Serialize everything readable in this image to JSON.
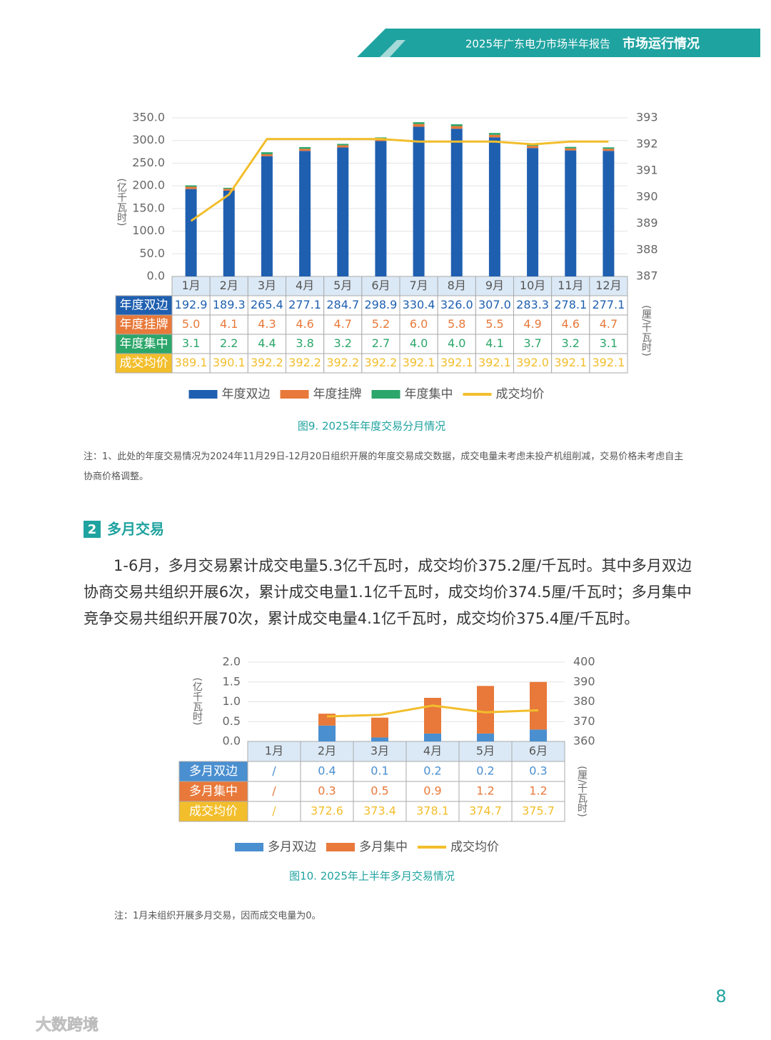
{
  "header": {
    "report": "2025年广东电力市场半年报告",
    "section": "市场运行情况"
  },
  "chart_data": [
    {
      "type": "bar",
      "stacked": true,
      "categories": [
        "1月",
        "2月",
        "3月",
        "4月",
        "5月",
        "6月",
        "7月",
        "8月",
        "9月",
        "10月",
        "11月",
        "12月"
      ],
      "series": [
        {
          "name": "年度双边",
          "color": "#1f5fb0",
          "values": [
            192.9,
            189.3,
            265.4,
            277.1,
            284.7,
            298.9,
            330.4,
            326.0,
            307.0,
            283.3,
            278.1,
            277.1
          ],
          "value_labels": [
            "192.9",
            "189.3",
            "265.4",
            "277.1",
            "284.7",
            "298.9",
            "330.4",
            "326.0",
            "307.0",
            "283.3",
            "278.1",
            "277.1"
          ]
        },
        {
          "name": "年度挂牌",
          "color": "#e8793a",
          "values": [
            5.0,
            4.1,
            4.3,
            4.6,
            4.7,
            5.2,
            6.0,
            5.8,
            5.5,
            4.9,
            4.6,
            4.7
          ],
          "value_labels": [
            "5.0",
            "4.1",
            "4.3",
            "4.6",
            "4.7",
            "5.2",
            "6.0",
            "5.8",
            "5.5",
            "4.9",
            "4.6",
            "4.7"
          ]
        },
        {
          "name": "年度集中",
          "color": "#2ca66a",
          "values": [
            3.1,
            2.2,
            4.4,
            3.8,
            3.2,
            2.7,
            4.0,
            4.0,
            4.1,
            3.7,
            3.2,
            3.1
          ],
          "value_labels": [
            "3.1",
            "2.2",
            "4.4",
            "3.8",
            "3.2",
            "2.7",
            "4.0",
            "4.0",
            "4.1",
            "3.7",
            "3.2",
            "3.1"
          ]
        },
        {
          "name": "成交均价",
          "color": "#f2be2c",
          "axis": "y2",
          "values": [
            389.1,
            390.1,
            392.2,
            392.2,
            392.2,
            392.2,
            392.1,
            392.1,
            392.1,
            392.0,
            392.1,
            392.1
          ],
          "value_labels": [
            "389.1",
            "390.1",
            "392.2",
            "392.2",
            "392.2",
            "392.2",
            "392.1",
            "392.1",
            "392.1",
            "392.0",
            "392.1",
            "392.1"
          ]
        }
      ],
      "y_label": "(亿千瓦时)",
      "y2_label": "(厘/千瓦时)",
      "ylim": [
        0,
        350
      ],
      "yticks": [
        {
          "value": 0,
          "label": "0.0"
        },
        {
          "value": 50,
          "label": "50.0"
        },
        {
          "value": 100,
          "label": "100.0"
        },
        {
          "value": 150,
          "label": "150.0"
        },
        {
          "value": 200,
          "label": "200.0"
        },
        {
          "value": 250,
          "label": "250.0"
        },
        {
          "value": 300,
          "label": "300.0"
        },
        {
          "value": 350,
          "label": "350.0"
        }
      ],
      "y2lim": [
        387,
        393
      ],
      "y2ticks": [
        387,
        388,
        389,
        390,
        391,
        392,
        393
      ],
      "grid": true,
      "caption": "图9. 2025年年度交易分月情况",
      "note": "注：1、此处的年度交易情况为2024年11月29日-12月20日组织开展的年度交易成交数据，成交电量未考虑未投产机组削减，交易价格未考虑自主协商价格调整。"
    },
    {
      "type": "bar",
      "stacked": true,
      "categories": [
        "1月",
        "2月",
        "3月",
        "4月",
        "5月",
        "6月"
      ],
      "series": [
        {
          "name": "多月双边",
          "color": "#4a8fd0",
          "values": [
            null,
            0.4,
            0.1,
            0.2,
            0.2,
            0.3
          ],
          "value_labels": [
            "/",
            "0.4",
            "0.1",
            "0.2",
            "0.2",
            "0.3"
          ]
        },
        {
          "name": "多月集中",
          "color": "#e8793a",
          "values": [
            null,
            0.3,
            0.5,
            0.9,
            1.2,
            1.2
          ],
          "value_labels": [
            "/",
            "0.3",
            "0.5",
            "0.9",
            "1.2",
            "1.2"
          ]
        },
        {
          "name": "成交均价",
          "color": "#f2be2c",
          "axis": "y2",
          "values": [
            null,
            372.6,
            373.4,
            378.1,
            374.7,
            375.7
          ],
          "value_labels": [
            "/",
            "372.6",
            "373.4",
            "378.1",
            "374.7",
            "375.7"
          ]
        }
      ],
      "y_label": "(亿千瓦时)",
      "y2_label": "(厘/千瓦时)",
      "ylim": [
        0,
        2
      ],
      "yticks": [
        {
          "value": 0,
          "label": "0.0"
        },
        {
          "value": 0.5,
          "label": "0.5"
        },
        {
          "value": 1,
          "label": "1.0"
        },
        {
          "value": 1.5,
          "label": "1.5"
        },
        {
          "value": 2,
          "label": "2.0"
        }
      ],
      "y2lim": [
        360,
        400
      ],
      "y2ticks": [
        360,
        370,
        380,
        390,
        400
      ],
      "grid": true,
      "caption": "图10. 2025年上半年多月交易情况",
      "note": "注：1月未组织开展多月交易，因而成交电量为0。"
    }
  ],
  "section": {
    "number": "2",
    "title": "多月交易"
  },
  "paragraph": "1-6月，多月交易累计成交电量5.3亿千瓦时，成交均价375.2厘/千瓦时。其中多月双边协商交易共组织开展6次，累计成交电量1.1亿千瓦时，成交均价374.5厘/千瓦时；多月集中竞争交易共组织开展70次，累计成交电量4.1亿千瓦时，成交均价375.4厘/千瓦时。",
  "page_number": "8",
  "watermark": "大数跨境"
}
